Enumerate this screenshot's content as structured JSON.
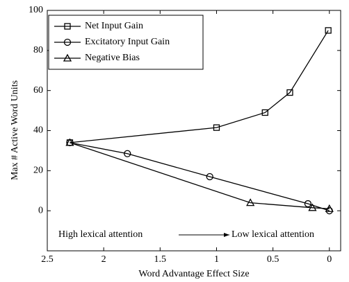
{
  "chart_data": {
    "type": "line",
    "xlabel": "Word Advantage Effect Size",
    "ylabel": "Max # Active Word Units",
    "xlim": [
      2.5,
      -0.1
    ],
    "xticks": [
      2.5,
      2,
      1.5,
      1,
      0.5,
      0
    ],
    "ylim": [
      -20,
      100
    ],
    "yticks": [
      0,
      20,
      40,
      60,
      80,
      100
    ],
    "legend": "upper left",
    "annotations": [
      "High lexical attention",
      "Low lexical attention"
    ],
    "series": [
      {
        "name": "Net Input Gain",
        "marker": "square",
        "color": "#000000",
        "x": [
          2.3,
          1.0,
          0.57,
          0.35,
          0.01
        ],
        "values": [
          34,
          41.5,
          49,
          59,
          90
        ]
      },
      {
        "name": "Excitatory Input Gain",
        "marker": "circle",
        "color": "#000000",
        "x": [
          2.3,
          1.79,
          1.06,
          0.19,
          0
        ],
        "values": [
          34,
          28.5,
          17,
          3.5,
          0
        ]
      },
      {
        "name": "Negative Bias",
        "marker": "triangle",
        "color": "#000000",
        "x": [
          2.3,
          0.7,
          0.15,
          0
        ],
        "values": [
          34,
          4,
          1.5,
          1
        ]
      }
    ]
  }
}
